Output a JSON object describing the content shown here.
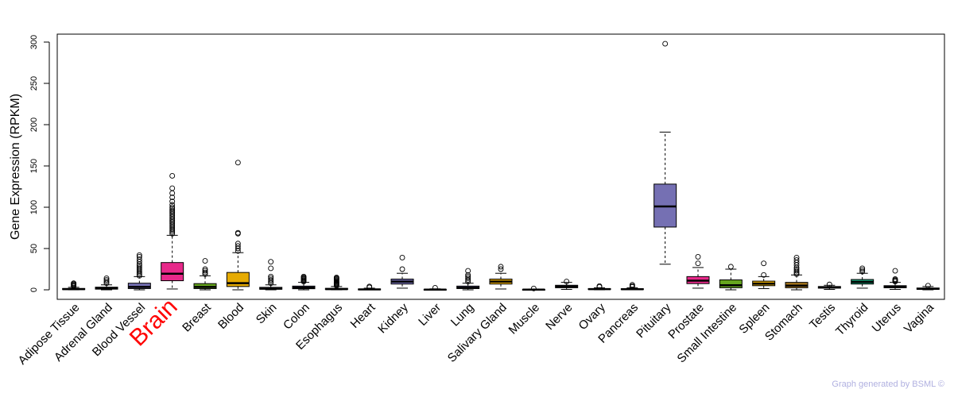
{
  "chart_data": {
    "type": "boxplot",
    "ylabel": "Gene Expression (RPKM)",
    "ylim": [
      0,
      300
    ],
    "yticks": [
      0,
      50,
      100,
      150,
      200,
      250,
      300
    ],
    "highlight": "Brain",
    "highlight_color": "#ff0000",
    "categories": [
      {
        "name": "Adipose Tissue",
        "color": "#7570b3",
        "q1": 0.3,
        "median": 0.8,
        "q3": 1.6,
        "wlow": 0,
        "whigh": 3,
        "outliers": [
          4,
          5,
          6,
          7,
          8
        ]
      },
      {
        "name": "Adrenal Gland",
        "color": "#7570b3",
        "q1": 0.8,
        "median": 1.8,
        "q3": 3.2,
        "wlow": 0,
        "whigh": 6,
        "outliers": [
          8,
          10,
          12,
          14
        ]
      },
      {
        "name": "Blood Vessel",
        "color": "#7570b3",
        "q1": 1.5,
        "median": 3.5,
        "q3": 8,
        "wlow": 0,
        "whigh": 16,
        "outliers": [
          17,
          19,
          21,
          23,
          25,
          27,
          29,
          31,
          34,
          37,
          40,
          42
        ]
      },
      {
        "name": "Brain",
        "color": "#e7298a",
        "q1": 11,
        "median": 19.5,
        "q3": 33,
        "wlow": 1,
        "whigh": 66,
        "outliers": [
          68,
          70,
          72,
          74,
          76,
          78,
          80,
          82,
          84,
          86,
          88,
          90,
          92,
          94,
          96,
          98,
          100,
          103,
          107,
          112,
          117,
          123,
          138
        ]
      },
      {
        "name": "Breast",
        "color": "#66a61e",
        "q1": 1.5,
        "median": 3.5,
        "q3": 7.5,
        "wlow": 0,
        "whigh": 17,
        "outliers": [
          19,
          21,
          23,
          25,
          35
        ]
      },
      {
        "name": "Blood",
        "color": "#e6ab02",
        "q1": 4,
        "median": 8,
        "q3": 21,
        "wlow": 0,
        "whigh": 45,
        "outliers": [
          47,
          50,
          53,
          56,
          68,
          69,
          154
        ]
      },
      {
        "name": "Skin",
        "color": "#7570b3",
        "q1": 0.7,
        "median": 1.5,
        "q3": 3,
        "wlow": 0,
        "whigh": 6,
        "outliers": [
          8,
          10,
          12,
          14,
          16,
          26,
          34
        ]
      },
      {
        "name": "Colon",
        "color": "#7570b3",
        "q1": 1.3,
        "median": 2.7,
        "q3": 4.5,
        "wlow": 0,
        "whigh": 9,
        "outliers": [
          10,
          11,
          12,
          13,
          14,
          15,
          16
        ]
      },
      {
        "name": "Esophagus",
        "color": "#7570b3",
        "q1": 0.4,
        "median": 0.9,
        "q3": 1.8,
        "wlow": 0,
        "whigh": 4,
        "outliers": [
          5,
          6,
          7,
          8,
          9,
          10,
          11,
          12,
          13,
          14,
          15
        ]
      },
      {
        "name": "Heart",
        "color": "#7570b3",
        "q1": 0.2,
        "median": 0.5,
        "q3": 1,
        "wlow": 0,
        "whigh": 2,
        "outliers": [
          3,
          4
        ]
      },
      {
        "name": "Kidney",
        "color": "#7570b3",
        "q1": 7,
        "median": 10,
        "q3": 13,
        "wlow": 2,
        "whigh": 20,
        "outliers": [
          25,
          39
        ]
      },
      {
        "name": "Liver",
        "color": "#7570b3",
        "q1": 0.1,
        "median": 0.3,
        "q3": 0.6,
        "wlow": 0,
        "whigh": 1.2,
        "outliers": [
          2.5
        ]
      },
      {
        "name": "Lung",
        "color": "#7570b3",
        "q1": 1.5,
        "median": 2.5,
        "q3": 4.5,
        "wlow": 0,
        "whigh": 8,
        "outliers": [
          10,
          12,
          14,
          16,
          18,
          23
        ]
      },
      {
        "name": "Salivary Gland",
        "color": "#e6ab02",
        "q1": 7,
        "median": 10,
        "q3": 13,
        "wlow": 1,
        "whigh": 20,
        "outliers": [
          25,
          28
        ]
      },
      {
        "name": "Muscle",
        "color": "#7570b3",
        "q1": 0.1,
        "median": 0.2,
        "q3": 0.5,
        "wlow": 0,
        "whigh": 1,
        "outliers": [
          1.6
        ]
      },
      {
        "name": "Nerve",
        "color": "#7570b3",
        "q1": 2.5,
        "median": 4,
        "q3": 5.5,
        "wlow": 0.5,
        "whigh": 9,
        "outliers": [
          10
        ]
      },
      {
        "name": "Ovary",
        "color": "#7570b3",
        "q1": 0.4,
        "median": 0.8,
        "q3": 1.4,
        "wlow": 0,
        "whigh": 2.5,
        "outliers": [
          3.5,
          4.5
        ]
      },
      {
        "name": "Pancreas",
        "color": "#7570b3",
        "q1": 0.3,
        "median": 0.7,
        "q3": 1.3,
        "wlow": 0,
        "whigh": 2.5,
        "outliers": [
          3.5,
          4.5,
          6
        ]
      },
      {
        "name": "Pituitary",
        "color": "#7570b3",
        "q1": 76,
        "median": 101,
        "q3": 128,
        "wlow": 31,
        "whigh": 191,
        "outliers": [
          298
        ]
      },
      {
        "name": "Prostate",
        "color": "#e7298a",
        "q1": 7.5,
        "median": 11,
        "q3": 16,
        "wlow": 2,
        "whigh": 27,
        "outliers": [
          32,
          40
        ]
      },
      {
        "name": "Small Intestine",
        "color": "#66a61e",
        "q1": 2.5,
        "median": 5.5,
        "q3": 12,
        "wlow": 0,
        "whigh": 25,
        "outliers": [
          28
        ]
      },
      {
        "name": "Spleen",
        "color": "#e6ab02",
        "q1": 5,
        "median": 7.5,
        "q3": 10.5,
        "wlow": 1.5,
        "whigh": 16,
        "outliers": [
          18,
          32
        ]
      },
      {
        "name": "Stomach",
        "color": "#a6761d",
        "q1": 2.5,
        "median": 5,
        "q3": 9,
        "wlow": 0,
        "whigh": 18,
        "outliers": [
          19,
          21,
          23,
          25,
          27,
          30,
          33,
          36,
          39
        ]
      },
      {
        "name": "Testis",
        "color": "#7570b3",
        "q1": 2,
        "median": 3,
        "q3": 4,
        "wlow": 0.5,
        "whigh": 5.5,
        "outliers": [
          6.5
        ]
      },
      {
        "name": "Thyroid",
        "color": "#1b9e77",
        "q1": 7,
        "median": 9.5,
        "q3": 12.5,
        "wlow": 2,
        "whigh": 20,
        "outliers": [
          22,
          24,
          26
        ]
      },
      {
        "name": "Uterus",
        "color": "#7570b3",
        "q1": 2.5,
        "median": 3.5,
        "q3": 5,
        "wlow": 0.5,
        "whigh": 9,
        "outliers": [
          10,
          11,
          12,
          13,
          23
        ]
      },
      {
        "name": "Vagina",
        "color": "#7570b3",
        "q1": 0.6,
        "median": 1.2,
        "q3": 2.2,
        "wlow": 0,
        "whigh": 4,
        "outliers": [
          5
        ]
      }
    ]
  },
  "credit": "Graph generated by BSML ©"
}
